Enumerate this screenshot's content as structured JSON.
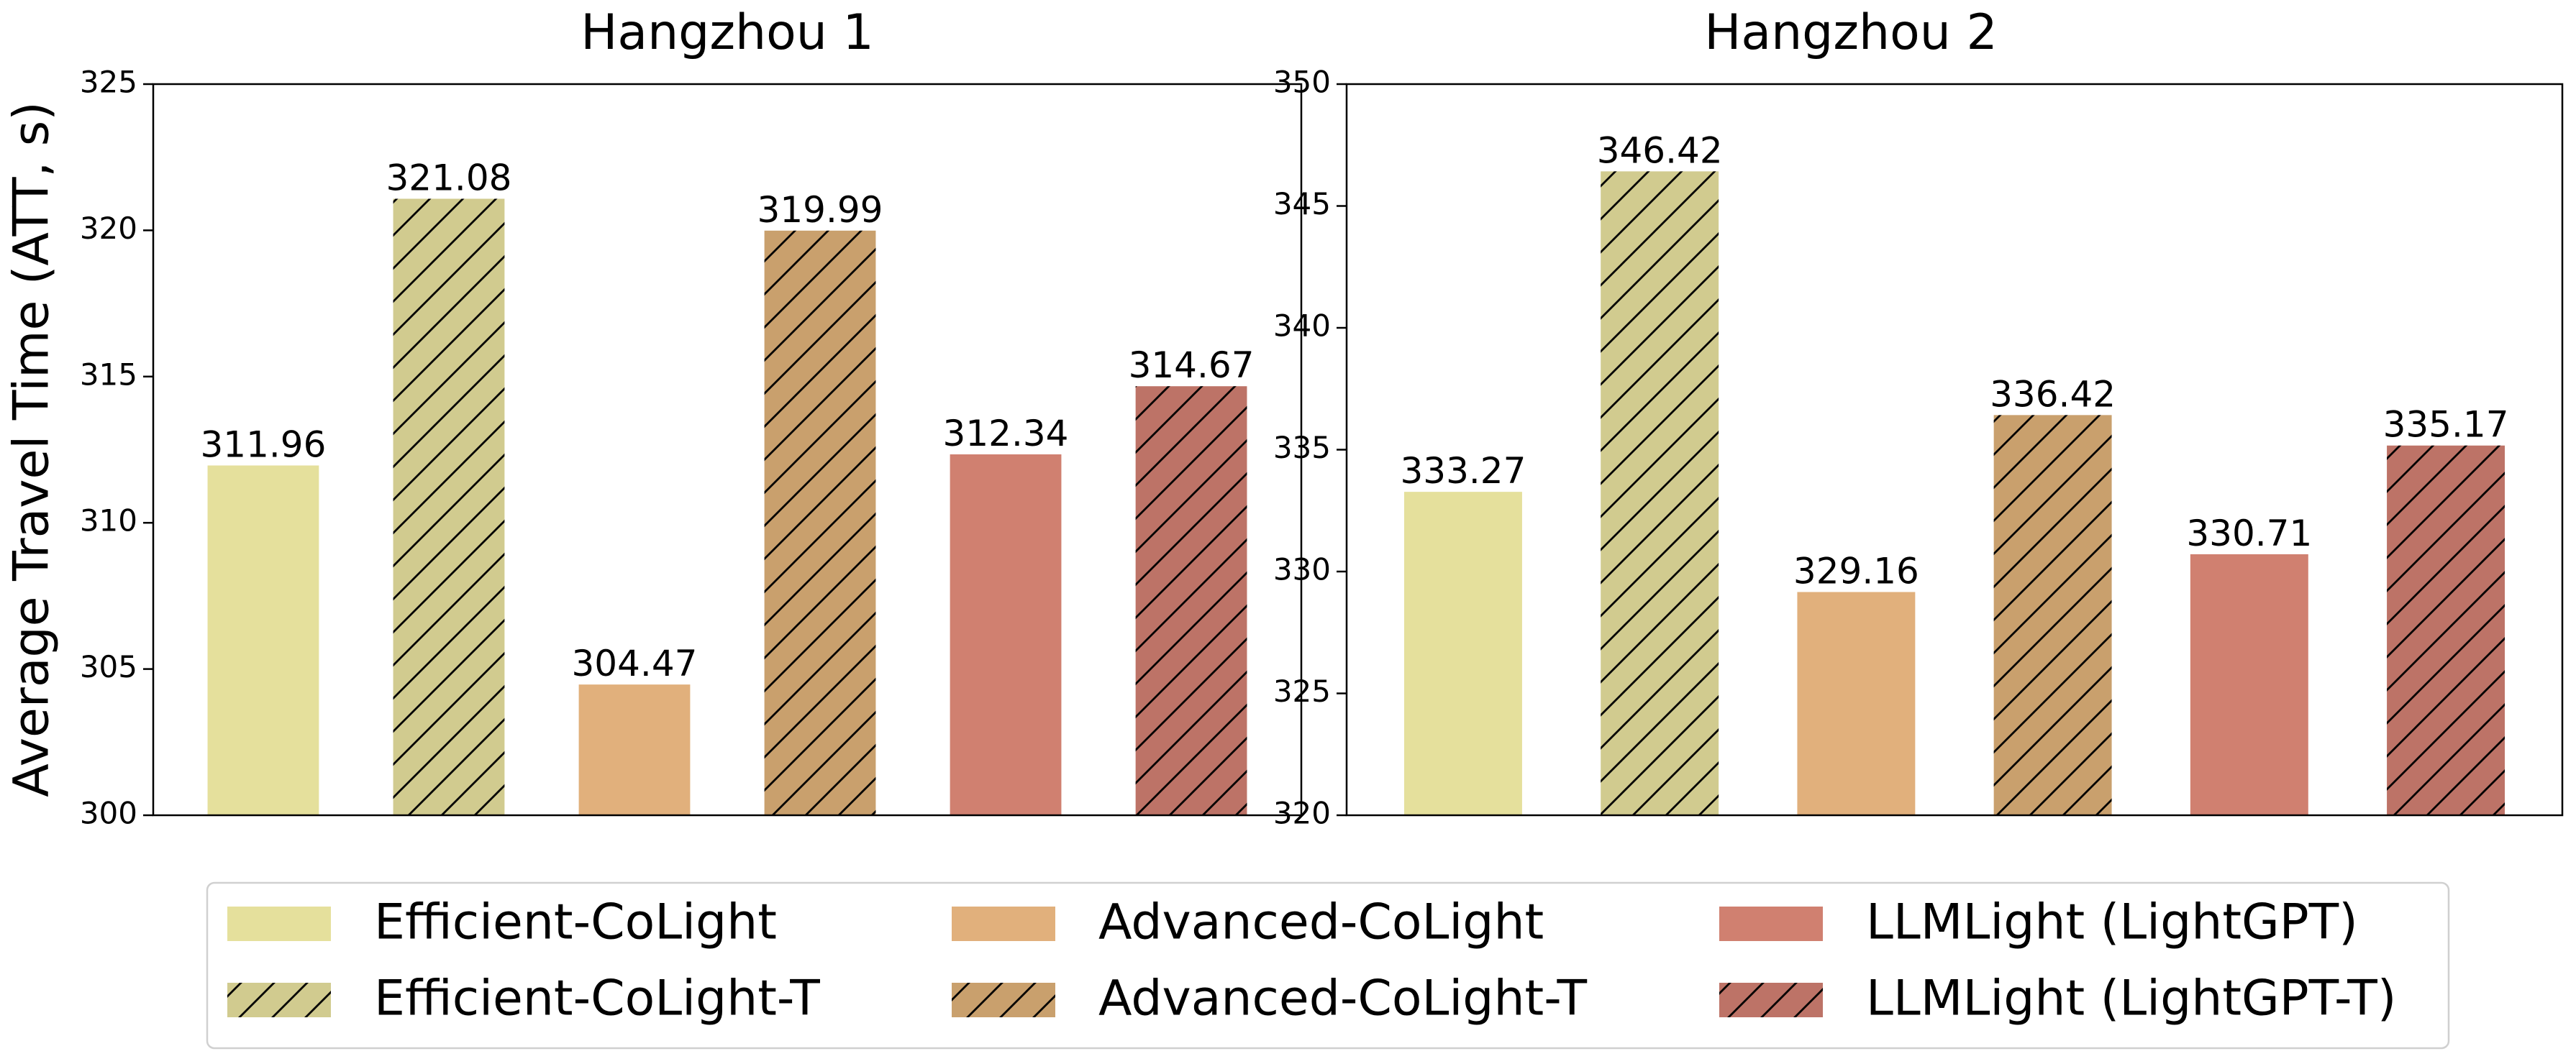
{
  "figure": {
    "ylabel": "Average Travel Time (ATT, s)"
  },
  "chart_data": [
    {
      "type": "bar",
      "title": "Hangzhou 1",
      "categories": [
        "Efficient-CoLight",
        "Efficient-CoLight-T",
        "Advanced-CoLight",
        "Advanced-CoLight-T",
        "LLMLight (LightGPT)",
        "LLMLight (LightGPT-T)"
      ],
      "values": [
        311.96,
        321.08,
        304.47,
        319.99,
        312.34,
        314.67
      ],
      "value_labels": [
        "311.96",
        "321.08",
        "304.47",
        "319.99",
        "312.34",
        "314.67"
      ],
      "ylim": [
        300,
        325
      ],
      "yticks": [
        "300",
        "305",
        "310",
        "315",
        "320",
        "325"
      ],
      "ytick_values": [
        300,
        305,
        310,
        315,
        320,
        325
      ],
      "xlabel": "",
      "grid": false
    },
    {
      "type": "bar",
      "title": "Hangzhou 2",
      "categories": [
        "Efficient-CoLight",
        "Efficient-CoLight-T",
        "Advanced-CoLight",
        "Advanced-CoLight-T",
        "LLMLight (LightGPT)",
        "LLMLight (LightGPT-T)"
      ],
      "values": [
        333.27,
        346.42,
        329.16,
        336.42,
        330.71,
        335.17
      ],
      "value_labels": [
        "333.27",
        "346.42",
        "329.16",
        "336.42",
        "330.71",
        "335.17"
      ],
      "ylim": [
        320,
        350
      ],
      "yticks": [
        "320",
        "325",
        "330",
        "335",
        "340",
        "345",
        "350"
      ],
      "ytick_values": [
        320,
        325,
        330,
        335,
        340,
        345,
        350
      ],
      "xlabel": "",
      "grid": false
    }
  ],
  "legend": {
    "placement": "bottom-center",
    "entries": [
      {
        "label": "Efficient-CoLight",
        "color": "#e5e09c",
        "hatched": false
      },
      {
        "label": "Efficient-CoLight-T",
        "color": "#d1cb8f",
        "hatched": true
      },
      {
        "label": "Advanced-CoLight",
        "color": "#e1b07c",
        "hatched": false
      },
      {
        "label": "Advanced-CoLight-T",
        "color": "#c9a06d",
        "hatched": true
      },
      {
        "label": "LLMLight (LightGPT)",
        "color": "#d08070",
        "hatched": false
      },
      {
        "label": "LLMLight (LightGPT-T)",
        "color": "#bd7367",
        "hatched": true
      }
    ]
  }
}
